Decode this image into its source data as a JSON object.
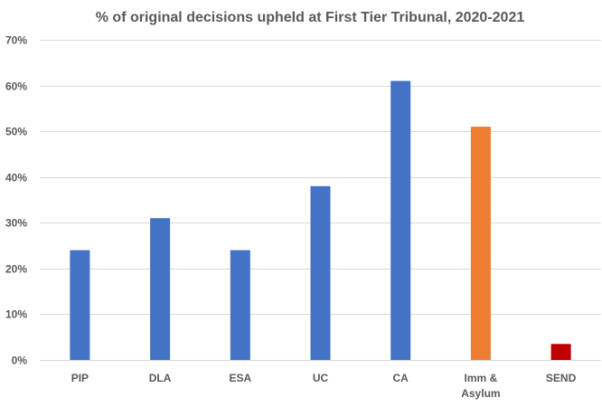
{
  "chart_data": {
    "type": "bar",
    "title": "% of original decisions upheld at First Tier Tribunal, 2020-2021",
    "xlabel": "",
    "ylabel": "",
    "ylim": [
      0,
      70
    ],
    "y_ticks": [
      "0%",
      "10%",
      "20%",
      "30%",
      "40%",
      "50%",
      "60%",
      "70%"
    ],
    "grid": true,
    "legend": "none",
    "categories": [
      "PIP",
      "DLA",
      "ESA",
      "UC",
      "CA",
      "Imm & Asylum",
      "SEND"
    ],
    "category_lines": [
      [
        "PIP"
      ],
      [
        "DLA"
      ],
      [
        "ESA"
      ],
      [
        "UC"
      ],
      [
        "CA"
      ],
      [
        "Imm &",
        "Asylum"
      ],
      [
        "SEND"
      ]
    ],
    "values": [
      24,
      31,
      24,
      38,
      61,
      51,
      3.5
    ],
    "colors": [
      "#4472c4",
      "#4472c4",
      "#4472c4",
      "#4472c4",
      "#4472c4",
      "#ed7d31",
      "#c00000"
    ]
  }
}
